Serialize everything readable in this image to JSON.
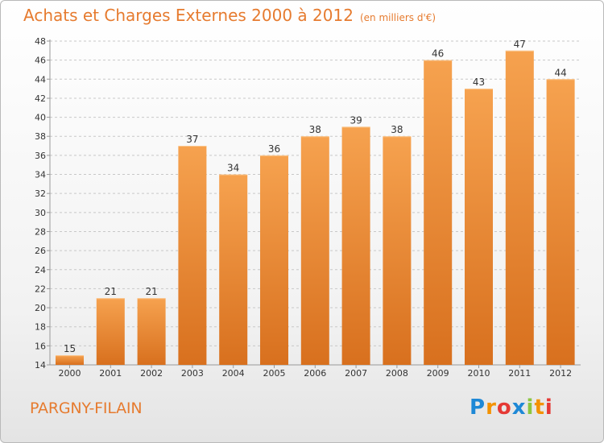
{
  "title": "Achats et Charges Externes 2000 à 2012",
  "unit": "(en milliers d'€)",
  "city": "PARGNY-FILAIN",
  "logo": {
    "text": "Proxiti",
    "letters": [
      {
        "ch": "P",
        "color": "#1e88d6"
      },
      {
        "ch": "r",
        "color": "#f39200"
      },
      {
        "ch": "o",
        "color": "#e53935"
      },
      {
        "ch": "x",
        "color": "#1e88d6"
      },
      {
        "ch": "i",
        "color": "#8cc63f"
      },
      {
        "ch": "t",
        "color": "#f39200"
      },
      {
        "ch": "i",
        "color": "#e53935"
      }
    ]
  },
  "colors": {
    "accent": "#e67b2f",
    "bar_light": "#f6a24f",
    "bar_dark": "#d8701e",
    "grid": "#c8c8c8",
    "text": "#333333"
  },
  "chart_data": {
    "type": "bar",
    "categories": [
      "2000",
      "2001",
      "2002",
      "2003",
      "2004",
      "2005",
      "2006",
      "2007",
      "2008",
      "2009",
      "2010",
      "2011",
      "2012"
    ],
    "values": [
      15,
      21,
      21,
      37,
      34,
      36,
      38,
      39,
      38,
      46,
      43,
      47,
      44
    ],
    "ylim": [
      14,
      48
    ],
    "yticks": [
      14,
      16,
      18,
      20,
      22,
      24,
      26,
      28,
      30,
      32,
      34,
      36,
      38,
      40,
      42,
      44,
      46,
      48
    ],
    "grid": "horizontal dashed",
    "legend": "none"
  }
}
